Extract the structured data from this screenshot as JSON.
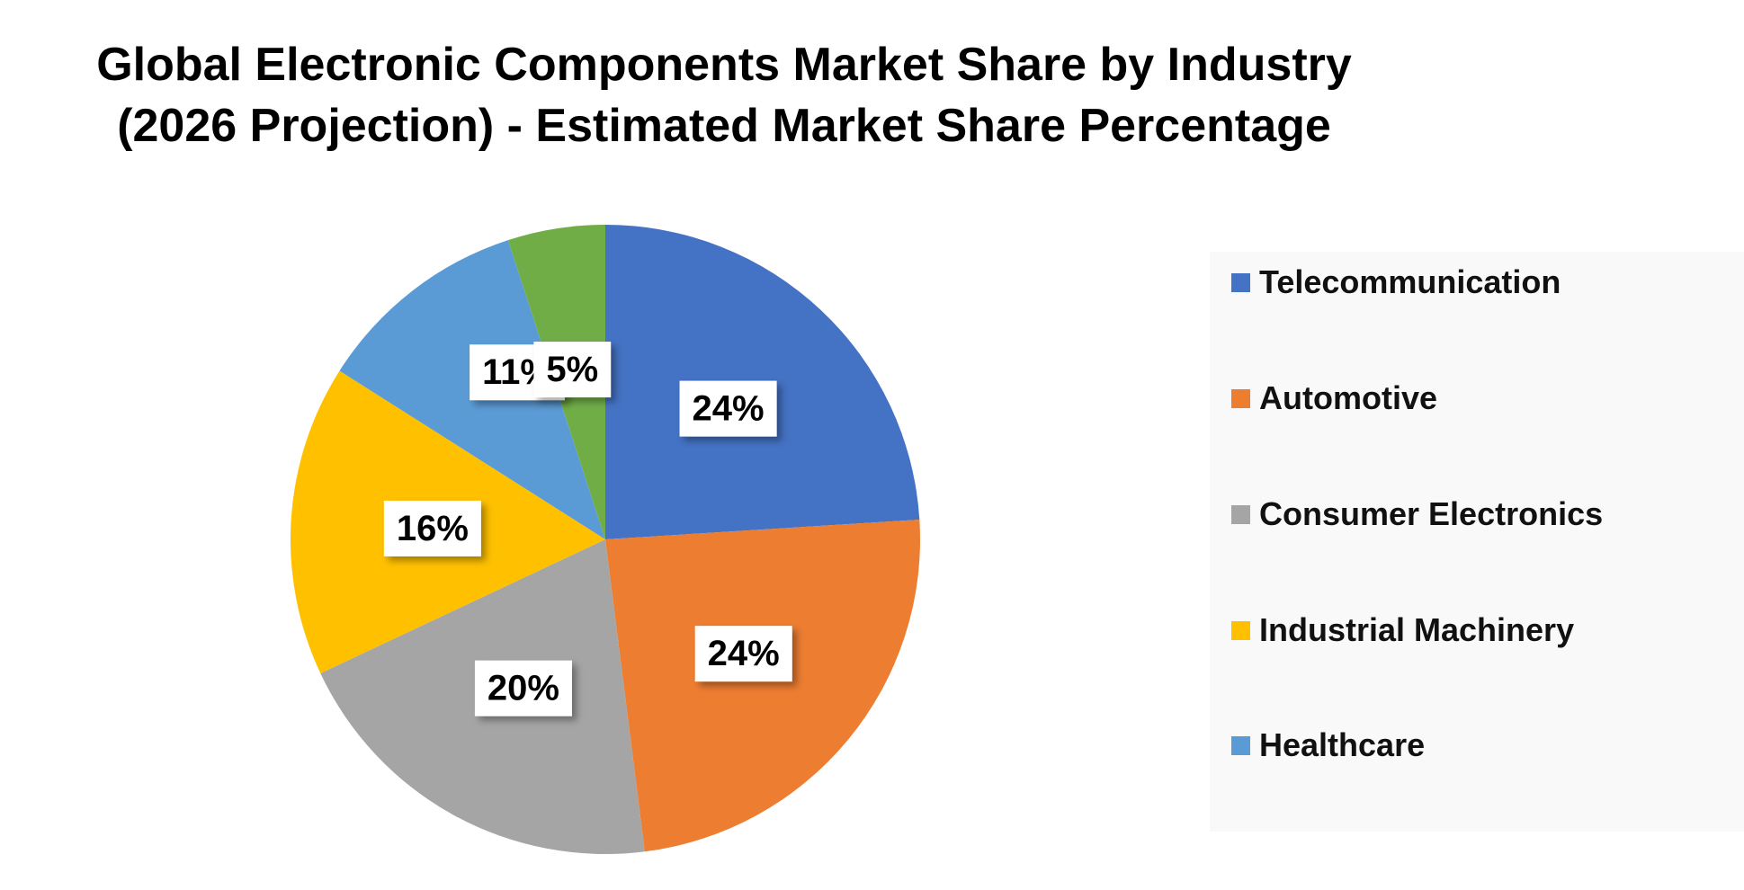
{
  "chart_data": {
    "type": "pie",
    "title_lines": [
      "Global Electronic Components Market Share by Industry",
      "(2026 Projection) - Estimated Market Share Percentage"
    ],
    "categories": [
      "Telecommunication",
      "Automotive",
      "Consumer Electronics",
      "Industrial Machinery",
      "Healthcare",
      ""
    ],
    "values": [
      24,
      24,
      20,
      16,
      11,
      5
    ],
    "labels": [
      "24%",
      "24%",
      "20%",
      "16%",
      "11%",
      "5%"
    ],
    "colors": [
      "#4472C4",
      "#ED7D31",
      "#A5A5A5",
      "#FFC000",
      "#5B9BD5",
      "#70AD47"
    ],
    "legend": {
      "position": "right",
      "entries": [
        {
          "label": "Telecommunication",
          "color": "#4472C4"
        },
        {
          "label": "Automotive",
          "color": "#ED7D31"
        },
        {
          "label": "Consumer Electronics",
          "color": "#A5A5A5"
        },
        {
          "label": "Industrial Machinery",
          "color": "#FFC000"
        },
        {
          "label": "Healthcare",
          "color": "#5B9BD5"
        }
      ]
    }
  }
}
